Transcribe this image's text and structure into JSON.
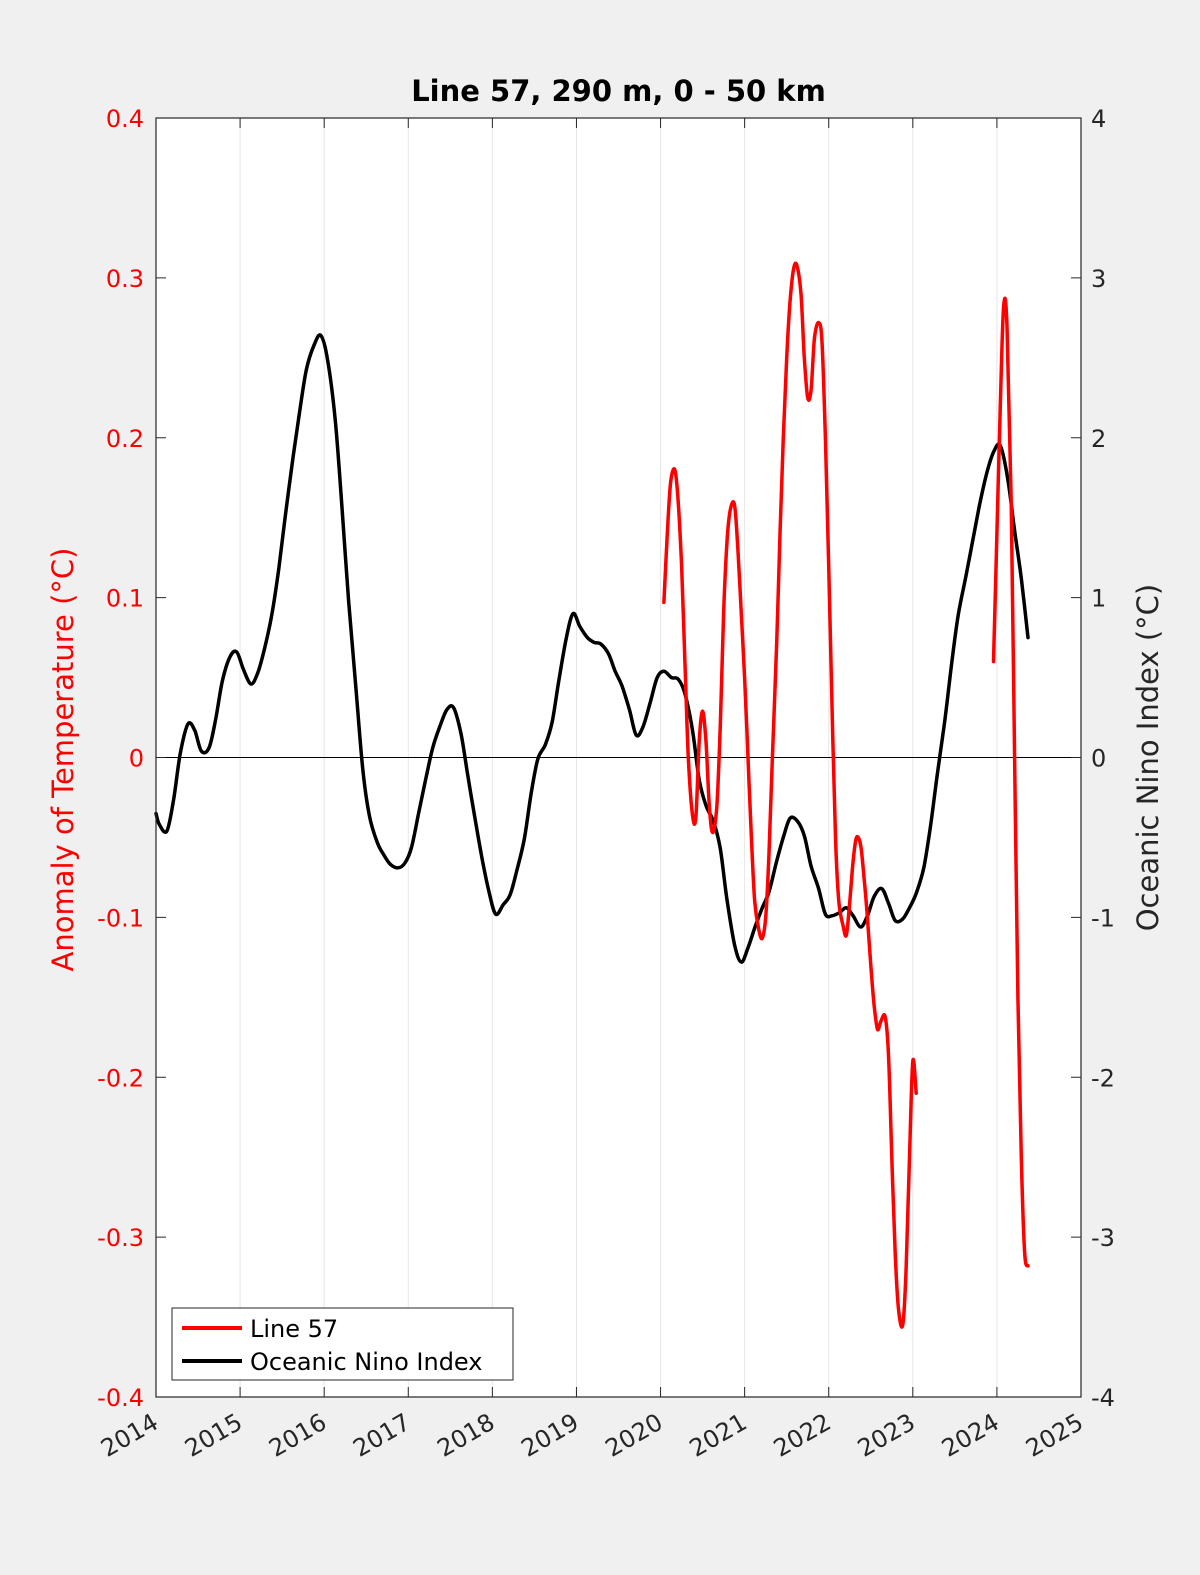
{
  "chart_data": {
    "type": "line",
    "title": "Line 57, 290 m, 0 - 50 km",
    "x_axis": {
      "range": [
        2014,
        2025
      ],
      "ticks": [
        "2014",
        "2015",
        "2016",
        "2017",
        "2018",
        "2019",
        "2020",
        "2021",
        "2022",
        "2023",
        "2024",
        "2025"
      ],
      "grid": true
    },
    "y_left": {
      "label": "Anomaly of Temperature (°C)",
      "range": [
        -0.4,
        0.4
      ],
      "ticks": [
        "-0.4",
        "-0.3",
        "-0.2",
        "-0.1",
        "0",
        "0.1",
        "0.2",
        "0.3",
        "0.4"
      ],
      "color": "#ff0000"
    },
    "y_right": {
      "label": "Oceanic Nino Index (°C)",
      "range": [
        -4,
        4
      ],
      "ticks": [
        "-4",
        "-3",
        "-2",
        "-1",
        "0",
        "1",
        "2",
        "3",
        "4"
      ],
      "color": "#000000"
    },
    "zero_line": true,
    "legend": {
      "placement": "bottom-left"
    },
    "series": [
      {
        "name": "Line 57",
        "axis": "left",
        "color": "#ff0000",
        "segments": [
          [
            [
              2020.04,
              0.097
            ],
            [
              2020.08,
              0.14
            ],
            [
              2020.12,
              0.172
            ],
            [
              2020.17,
              0.18
            ],
            [
              2020.21,
              0.16
            ],
            [
              2020.25,
              0.12
            ],
            [
              2020.29,
              0.06
            ],
            [
              2020.33,
              0.0
            ],
            [
              2020.38,
              -0.036
            ],
            [
              2020.42,
              -0.037
            ],
            [
              2020.46,
              0.01
            ],
            [
              2020.5,
              0.029
            ],
            [
              2020.54,
              0.01
            ],
            [
              2020.58,
              -0.03
            ],
            [
              2020.62,
              -0.047
            ],
            [
              2020.67,
              -0.03
            ],
            [
              2020.71,
              0.02
            ],
            [
              2020.75,
              0.09
            ],
            [
              2020.79,
              0.135
            ],
            [
              2020.83,
              0.155
            ],
            [
              2020.88,
              0.158
            ],
            [
              2020.92,
              0.13
            ],
            [
              2020.96,
              0.09
            ],
            [
              2021.0,
              0.05
            ],
            [
              2021.04,
              0.0
            ],
            [
              2021.08,
              -0.05
            ],
            [
              2021.12,
              -0.09
            ],
            [
              2021.17,
              -0.108
            ],
            [
              2021.21,
              -0.113
            ],
            [
              2021.25,
              -0.1
            ],
            [
              2021.29,
              -0.06
            ],
            [
              2021.33,
              0.0
            ],
            [
              2021.38,
              0.07
            ],
            [
              2021.42,
              0.14
            ],
            [
              2021.46,
              0.2
            ],
            [
              2021.5,
              0.25
            ],
            [
              2021.54,
              0.285
            ],
            [
              2021.58,
              0.305
            ],
            [
              2021.62,
              0.308
            ],
            [
              2021.67,
              0.29
            ],
            [
              2021.71,
              0.25
            ],
            [
              2021.75,
              0.225
            ],
            [
              2021.79,
              0.23
            ],
            [
              2021.83,
              0.262
            ],
            [
              2021.88,
              0.272
            ],
            [
              2021.92,
              0.26
            ],
            [
              2021.96,
              0.2
            ],
            [
              2022.0,
              0.12
            ],
            [
              2022.04,
              0.03
            ],
            [
              2022.08,
              -0.05
            ],
            [
              2022.12,
              -0.09
            ],
            [
              2022.17,
              -0.105
            ],
            [
              2022.21,
              -0.111
            ],
            [
              2022.25,
              -0.09
            ],
            [
              2022.29,
              -0.065
            ],
            [
              2022.33,
              -0.05
            ],
            [
              2022.38,
              -0.055
            ],
            [
              2022.42,
              -0.075
            ],
            [
              2022.46,
              -0.1
            ],
            [
              2022.5,
              -0.13
            ],
            [
              2022.54,
              -0.155
            ],
            [
              2022.58,
              -0.17
            ],
            [
              2022.62,
              -0.165
            ],
            [
              2022.67,
              -0.162
            ],
            [
              2022.71,
              -0.185
            ],
            [
              2022.75,
              -0.25
            ],
            [
              2022.79,
              -0.31
            ],
            [
              2022.83,
              -0.345
            ],
            [
              2022.88,
              -0.355
            ],
            [
              2022.92,
              -0.32
            ],
            [
              2022.96,
              -0.25
            ],
            [
              2023.0,
              -0.19
            ],
            [
              2023.04,
              -0.21
            ]
          ],
          [
            [
              2023.96,
              0.06
            ],
            [
              2024.0,
              0.14
            ],
            [
              2024.04,
              0.22
            ],
            [
              2024.08,
              0.282
            ],
            [
              2024.12,
              0.27
            ],
            [
              2024.17,
              0.16
            ],
            [
              2024.21,
              0.0
            ],
            [
              2024.25,
              -0.15
            ],
            [
              2024.29,
              -0.25
            ],
            [
              2024.33,
              -0.31
            ],
            [
              2024.37,
              -0.318
            ]
          ]
        ]
      },
      {
        "name": "Oceanic Nino Index",
        "axis": "right",
        "color": "#000000",
        "segments": [
          [
            [
              2014.0,
              -0.35
            ],
            [
              2014.04,
              -0.42
            ],
            [
              2014.13,
              -0.46
            ],
            [
              2014.21,
              -0.26
            ],
            [
              2014.29,
              0.03
            ],
            [
              2014.38,
              0.21
            ],
            [
              2014.46,
              0.17
            ],
            [
              2014.54,
              0.04
            ],
            [
              2014.63,
              0.06
            ],
            [
              2014.71,
              0.24
            ],
            [
              2014.79,
              0.48
            ],
            [
              2014.88,
              0.63
            ],
            [
              2014.96,
              0.66
            ],
            [
              2015.04,
              0.55
            ],
            [
              2015.13,
              0.46
            ],
            [
              2015.21,
              0.53
            ],
            [
              2015.29,
              0.68
            ],
            [
              2015.38,
              0.9
            ],
            [
              2015.46,
              1.18
            ],
            [
              2015.54,
              1.52
            ],
            [
              2015.63,
              1.88
            ],
            [
              2015.71,
              2.17
            ],
            [
              2015.79,
              2.43
            ],
            [
              2015.88,
              2.58
            ],
            [
              2015.96,
              2.64
            ],
            [
              2016.04,
              2.49
            ],
            [
              2016.13,
              2.12
            ],
            [
              2016.21,
              1.58
            ],
            [
              2016.29,
              0.98
            ],
            [
              2016.38,
              0.42
            ],
            [
              2016.46,
              -0.08
            ],
            [
              2016.54,
              -0.37
            ],
            [
              2016.63,
              -0.53
            ],
            [
              2016.71,
              -0.61
            ],
            [
              2016.79,
              -0.67
            ],
            [
              2016.88,
              -0.69
            ],
            [
              2016.96,
              -0.66
            ],
            [
              2017.04,
              -0.56
            ],
            [
              2017.13,
              -0.33
            ],
            [
              2017.21,
              -0.13
            ],
            [
              2017.29,
              0.06
            ],
            [
              2017.38,
              0.2
            ],
            [
              2017.46,
              0.3
            ],
            [
              2017.54,
              0.31
            ],
            [
              2017.63,
              0.14
            ],
            [
              2017.71,
              -0.12
            ],
            [
              2017.79,
              -0.37
            ],
            [
              2017.88,
              -0.64
            ],
            [
              2017.96,
              -0.84
            ],
            [
              2018.04,
              -0.98
            ],
            [
              2018.13,
              -0.92
            ],
            [
              2018.21,
              -0.86
            ],
            [
              2018.29,
              -0.71
            ],
            [
              2018.38,
              -0.51
            ],
            [
              2018.46,
              -0.23
            ],
            [
              2018.54,
              -0.01
            ],
            [
              2018.63,
              0.08
            ],
            [
              2018.71,
              0.22
            ],
            [
              2018.79,
              0.48
            ],
            [
              2018.88,
              0.75
            ],
            [
              2018.96,
              0.9
            ],
            [
              2019.04,
              0.82
            ],
            [
              2019.13,
              0.75
            ],
            [
              2019.21,
              0.72
            ],
            [
              2019.29,
              0.71
            ],
            [
              2019.38,
              0.65
            ],
            [
              2019.46,
              0.54
            ],
            [
              2019.54,
              0.45
            ],
            [
              2019.63,
              0.3
            ],
            [
              2019.71,
              0.14
            ],
            [
              2019.79,
              0.19
            ],
            [
              2019.88,
              0.35
            ],
            [
              2019.96,
              0.5
            ],
            [
              2020.04,
              0.54
            ],
            [
              2020.13,
              0.5
            ],
            [
              2020.21,
              0.49
            ],
            [
              2020.29,
              0.4
            ],
            [
              2020.38,
              0.17
            ],
            [
              2020.46,
              -0.14
            ],
            [
              2020.54,
              -0.3
            ],
            [
              2020.63,
              -0.4
            ],
            [
              2020.71,
              -0.57
            ],
            [
              2020.79,
              -0.89
            ],
            [
              2020.88,
              -1.17
            ],
            [
              2020.96,
              -1.28
            ],
            [
              2021.04,
              -1.19
            ],
            [
              2021.13,
              -1.05
            ],
            [
              2021.21,
              -0.94
            ],
            [
              2021.29,
              -0.84
            ],
            [
              2021.38,
              -0.65
            ],
            [
              2021.46,
              -0.5
            ],
            [
              2021.54,
              -0.38
            ],
            [
              2021.63,
              -0.4
            ],
            [
              2021.71,
              -0.49
            ],
            [
              2021.79,
              -0.68
            ],
            [
              2021.88,
              -0.82
            ],
            [
              2021.96,
              -0.98
            ],
            [
              2022.04,
              -0.99
            ],
            [
              2022.13,
              -0.97
            ],
            [
              2022.21,
              -0.94
            ],
            [
              2022.29,
              -0.99
            ],
            [
              2022.38,
              -1.06
            ],
            [
              2022.46,
              -0.99
            ],
            [
              2022.54,
              -0.87
            ],
            [
              2022.63,
              -0.82
            ],
            [
              2022.71,
              -0.91
            ],
            [
              2022.79,
              -1.02
            ],
            [
              2022.88,
              -1.01
            ],
            [
              2022.96,
              -0.94
            ],
            [
              2023.04,
              -0.85
            ],
            [
              2023.13,
              -0.69
            ],
            [
              2023.21,
              -0.43
            ],
            [
              2023.29,
              -0.11
            ],
            [
              2023.38,
              0.23
            ],
            [
              2023.46,
              0.58
            ],
            [
              2023.54,
              0.89
            ],
            [
              2023.63,
              1.13
            ],
            [
              2023.71,
              1.35
            ],
            [
              2023.79,
              1.57
            ],
            [
              2023.88,
              1.78
            ],
            [
              2023.96,
              1.91
            ],
            [
              2024.04,
              1.95
            ],
            [
              2024.13,
              1.74
            ],
            [
              2024.21,
              1.42
            ],
            [
              2024.29,
              1.12
            ],
            [
              2024.37,
              0.75
            ]
          ]
        ]
      }
    ]
  }
}
